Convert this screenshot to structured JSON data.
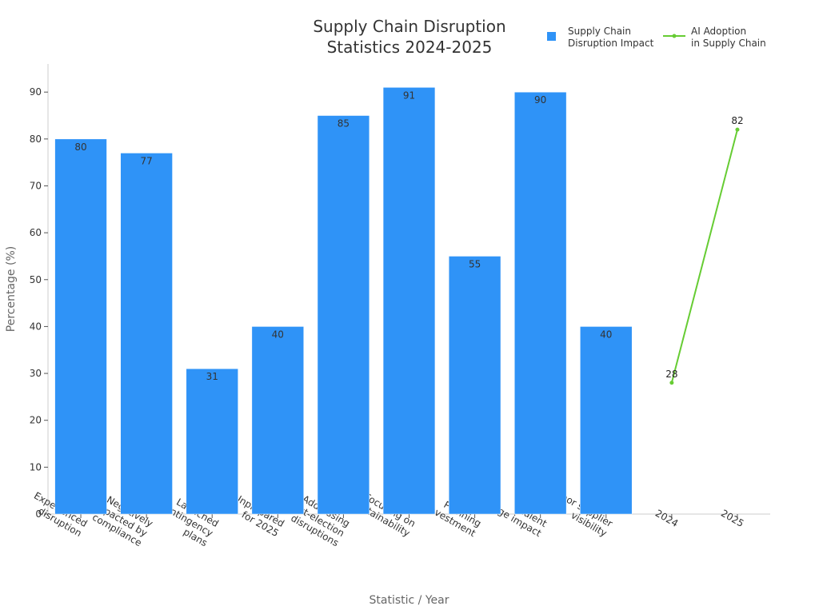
{
  "chart_data": {
    "type": "bar",
    "title": "Supply Chain Disruption Statistics 2024-2025",
    "title_lines": [
      "Supply Chain Disruption",
      "Statistics 2024-2025"
    ],
    "xlabel": "Statistic / Year",
    "ylabel": "Percentage (%)",
    "ylim": [
      0,
      96
    ],
    "yticks": [
      0,
      10,
      20,
      30,
      40,
      50,
      60,
      70,
      80,
      90
    ],
    "grid": false,
    "legend_position": "top-right",
    "categories": [
      "Experienced disruption",
      "Negatively impacted by compliance",
      "Launched contingency plans",
      "Unprepared for 2025",
      "Addressing post-election disruptions",
      "Focusing on sustainability",
      "Planning tech investment",
      "Talent shortage impact",
      "Poor supplier visibility",
      "2024",
      "2025"
    ],
    "category_label_lines": [
      [
        "Experienced",
        "disruption"
      ],
      [
        "Negatively",
        "impacted by",
        "compliance"
      ],
      [
        "Launched",
        "contingency",
        "plans"
      ],
      [
        "Unprepared",
        "for 2025"
      ],
      [
        "Addressing",
        "post-election",
        "disruptions"
      ],
      [
        "Focusing on",
        "sustainability"
      ],
      [
        "Planning",
        "tech investment"
      ],
      [
        "Talent",
        "shortage impact"
      ],
      [
        "Poor supplier",
        "visibility"
      ],
      [
        "2024"
      ],
      [
        "2025"
      ]
    ],
    "series": [
      {
        "name": "Supply Chain Disruption Impact",
        "legend_lines": [
          "Supply Chain",
          "Disruption Impact"
        ],
        "type": "bar",
        "color": "#2f93f7",
        "values": [
          80,
          77,
          31,
          40,
          85,
          91,
          55,
          90,
          40,
          null,
          null
        ]
      },
      {
        "name": "AI Adoption in Supply Chain",
        "legend_lines": [
          "AI Adoption",
          "in Supply Chain"
        ],
        "type": "line",
        "color": "#66cc33",
        "values": [
          null,
          null,
          null,
          null,
          null,
          null,
          null,
          null,
          null,
          28,
          82
        ]
      }
    ]
  }
}
